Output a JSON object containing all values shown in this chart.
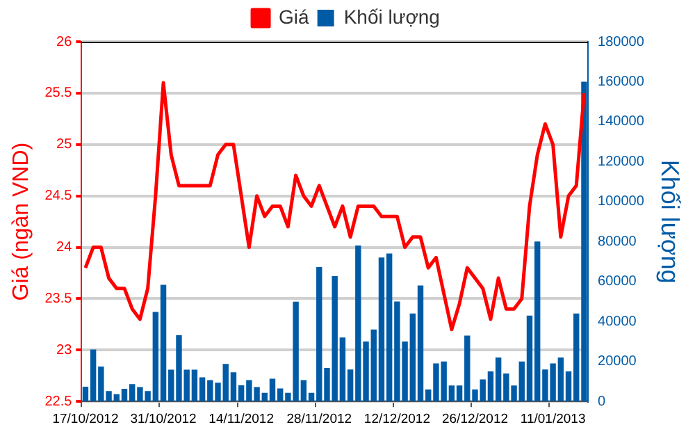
{
  "chart_data": {
    "type": "bar",
    "legend": "top",
    "grid": "y",
    "marker": "none",
    "ylabel": "Giá (ngàn VND)",
    "y2label": "Khối lượng",
    "categories": [
      "17/10/2012",
      null,
      null,
      null,
      null,
      null,
      null,
      null,
      null,
      null,
      "31/10/2012",
      null,
      null,
      null,
      null,
      null,
      null,
      null,
      null,
      null,
      "14/11/2012",
      null,
      null,
      null,
      null,
      null,
      null,
      null,
      null,
      null,
      "28/11/2012",
      null,
      null,
      null,
      null,
      null,
      null,
      null,
      null,
      null,
      "12/12/2012",
      null,
      null,
      null,
      null,
      null,
      null,
      null,
      null,
      null,
      "26/12/2012",
      null,
      null,
      null,
      null,
      null,
      null,
      null,
      null,
      null,
      "11/01/2013",
      null,
      null,
      null,
      null
    ],
    "ylim": [
      22.5,
      26
    ],
    "yticks": [
      22.5,
      23,
      23.5,
      24,
      24.5,
      25,
      25.5,
      26
    ],
    "y2lim": [
      0,
      180000
    ],
    "y2ticks": [
      0,
      20000,
      40000,
      60000,
      80000,
      100000,
      120000,
      140000,
      160000,
      180000
    ],
    "series": [
      {
        "name": "Giá",
        "type": "line",
        "color": "#ff0000",
        "values": [
          23.8,
          24.0,
          24.0,
          23.7,
          23.6,
          23.6,
          23.4,
          23.3,
          23.6,
          24.5,
          25.6,
          24.9,
          24.6,
          24.6,
          24.6,
          24.6,
          24.6,
          24.9,
          25.0,
          25.0,
          24.5,
          24.0,
          24.5,
          24.3,
          24.4,
          24.4,
          24.2,
          24.7,
          24.5,
          24.4,
          24.6,
          24.4,
          24.2,
          24.4,
          24.1,
          24.4,
          24.4,
          24.4,
          24.3,
          24.3,
          24.3,
          24.0,
          24.1,
          24.1,
          23.8,
          23.9,
          23.55,
          23.2,
          23.45,
          23.8,
          23.7,
          23.6,
          23.3,
          23.7,
          23.4,
          23.4,
          23.5,
          24.4,
          24.9,
          25.2,
          25.0,
          24.1,
          24.5,
          24.6,
          25.5
        ]
      },
      {
        "name": "Khối lượng",
        "axis": "y2",
        "color": "#005ba6",
        "values": [
          7400,
          26000,
          17500,
          5200,
          3600,
          6300,
          8700,
          7200,
          5200,
          44800,
          58400,
          15900,
          33100,
          15900,
          15900,
          12100,
          10700,
          9400,
          18800,
          14600,
          8100,
          10700,
          7200,
          4300,
          11400,
          6500,
          4300,
          49900,
          10700,
          4300,
          67200,
          16800,
          62700,
          32000,
          16000,
          78000,
          30000,
          36000,
          72000,
          74000,
          50000,
          30000,
          44000,
          58000,
          6000,
          19000,
          20000,
          8000,
          8000,
          33000,
          6000,
          11000,
          15000,
          22000,
          14000,
          8000,
          20000,
          43000,
          80000,
          16000,
          19000,
          22000,
          15000,
          44000,
          160000
        ]
      }
    ]
  }
}
